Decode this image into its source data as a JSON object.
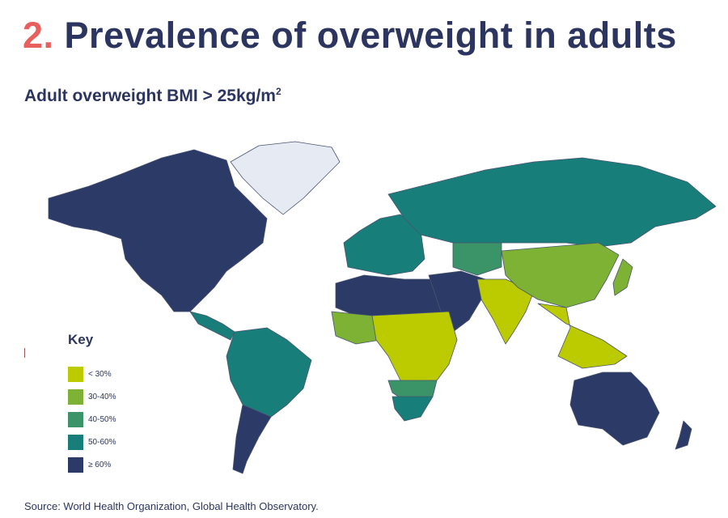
{
  "header": {
    "number": "2.",
    "title": "Prevalence of overweight in adults",
    "subtitle": "Adult overweight BMI > 25kg/m",
    "subtitle_sup": "2"
  },
  "chart_data": {
    "type": "choropleth",
    "title": "Prevalence of overweight in adults",
    "subtitle": "Adult overweight BMI > 25kg/m2",
    "legend_title": "Key",
    "legend_placement": "bottom-left",
    "bins": [
      {
        "label": "< 30%",
        "color": "#bccb00"
      },
      {
        "label": "30-40%",
        "color": "#7db234"
      },
      {
        "label": "40-50%",
        "color": "#3a9468"
      },
      {
        "label": "50-60%",
        "color": "#177e7a"
      },
      {
        "label": "≥ 60%",
        "color": "#2b3a66"
      }
    ],
    "no_data_color": "#e6eaf2",
    "regions": [
      {
        "name": "North America",
        "bin": 4
      },
      {
        "name": "Greenland",
        "bin": null
      },
      {
        "name": "Central America",
        "bin": 3
      },
      {
        "name": "South America",
        "bin": 3
      },
      {
        "name": "Southern Cone",
        "bin": 4
      },
      {
        "name": "Europe",
        "bin": 3
      },
      {
        "name": "Russia",
        "bin": 3
      },
      {
        "name": "Central Asia",
        "bin": 2
      },
      {
        "name": "North Africa",
        "bin": 4
      },
      {
        "name": "Middle East",
        "bin": 4
      },
      {
        "name": "West Africa",
        "bin": 1
      },
      {
        "name": "Sub-Saharan Africa",
        "bin": 0
      },
      {
        "name": "Southern Africa",
        "bin": 2
      },
      {
        "name": "South Africa",
        "bin": 3
      },
      {
        "name": "South Asia",
        "bin": 0
      },
      {
        "name": "China",
        "bin": 1
      },
      {
        "name": "Japan",
        "bin": 1
      },
      {
        "name": "Southeast Asia",
        "bin": 0
      },
      {
        "name": "Australia",
        "bin": 4
      },
      {
        "name": "New Zealand",
        "bin": 4
      }
    ]
  },
  "source": "Source: World Health Organization, Global Health Observatory."
}
